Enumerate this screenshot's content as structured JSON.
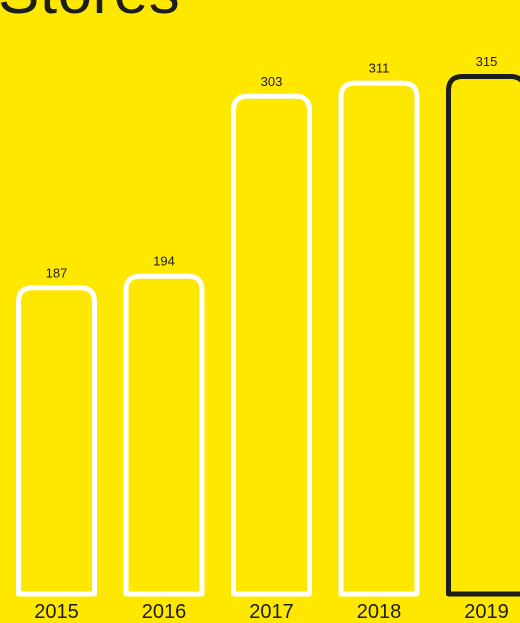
{
  "chart_data": {
    "type": "bar",
    "title": "Stores",
    "categories": [
      "2015",
      "2016",
      "2017",
      "2018",
      "2019"
    ],
    "values": [
      187,
      194,
      303,
      311,
      315
    ],
    "highlight_index": 4,
    "ylim": [
      0,
      315
    ],
    "grid": false,
    "xlabel": "",
    "ylabel": ""
  },
  "colors": {
    "background": "#FFE800",
    "bar_outline": "#FFFFFF",
    "highlight_outline": "#1D1D1B",
    "text": "#1D1D1B"
  }
}
